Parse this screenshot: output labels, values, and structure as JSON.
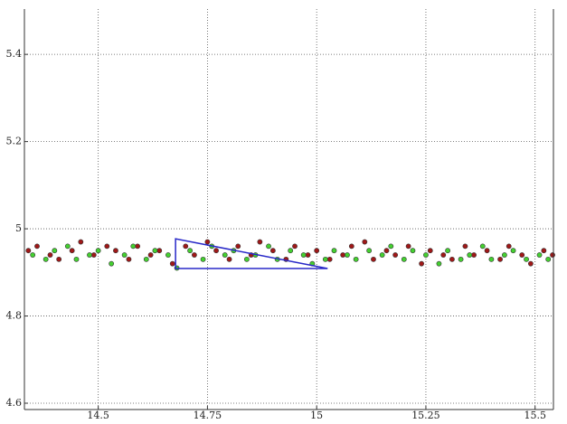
{
  "chart_data": {
    "type": "scatter",
    "xlim": [
      14.331,
      15.542
    ],
    "ylim": [
      4.5855,
      5.504
    ],
    "xticks": [
      14.5,
      14.75,
      15,
      15.25,
      15.5
    ],
    "yticks": [
      4.6,
      4.8,
      5,
      5.2,
      5.4
    ],
    "grid": true,
    "series": [
      {
        "color": "#a01818",
        "x": [
          14.34,
          14.36,
          14.39,
          14.41,
          14.44,
          14.46,
          14.49,
          14.52,
          14.54,
          14.57,
          14.59,
          14.62,
          14.64,
          14.67,
          14.7,
          14.72,
          14.75,
          14.77,
          14.8,
          14.82,
          14.85,
          14.87,
          14.9,
          14.93,
          14.95,
          14.98,
          15.0,
          15.03,
          15.06,
          15.08,
          15.11,
          15.13,
          15.16,
          15.18,
          15.21,
          15.24,
          15.26,
          15.29,
          15.31,
          15.34,
          15.36,
          15.39,
          15.42,
          15.44,
          15.47,
          15.49,
          15.52,
          15.54
        ],
        "values": [
          4.95,
          4.96,
          4.94,
          4.93,
          4.95,
          4.97,
          4.94,
          4.96,
          4.95,
          4.93,
          4.96,
          4.94,
          4.95,
          4.92,
          4.96,
          4.94,
          4.97,
          4.95,
          4.93,
          4.96,
          4.94,
          4.97,
          4.95,
          4.93,
          4.96,
          4.94,
          4.95,
          4.93,
          4.94,
          4.96,
          4.97,
          4.93,
          4.95,
          4.94,
          4.96,
          4.92,
          4.95,
          4.94,
          4.93,
          4.96,
          4.94,
          4.95,
          4.93,
          4.96,
          4.94,
          4.92,
          4.95,
          4.94
        ]
      },
      {
        "color": "#44d030",
        "x": [
          14.35,
          14.38,
          14.4,
          14.43,
          14.45,
          14.48,
          14.5,
          14.53,
          14.56,
          14.58,
          14.61,
          14.63,
          14.66,
          14.68,
          14.71,
          14.74,
          14.76,
          14.79,
          14.81,
          14.84,
          14.86,
          14.89,
          14.91,
          14.94,
          14.97,
          14.99,
          15.02,
          15.04,
          15.07,
          15.09,
          15.12,
          15.15,
          15.17,
          15.2,
          15.22,
          15.25,
          15.28,
          15.3,
          15.33,
          15.35,
          15.38,
          15.4,
          15.43,
          15.45,
          15.48,
          15.51,
          15.53
        ],
        "values": [
          4.94,
          4.93,
          4.95,
          4.96,
          4.93,
          4.94,
          4.95,
          4.92,
          4.94,
          4.96,
          4.93,
          4.95,
          4.94,
          4.91,
          4.95,
          4.93,
          4.96,
          4.94,
          4.95,
          4.93,
          4.94,
          4.96,
          4.93,
          4.95,
          4.94,
          4.92,
          4.93,
          4.95,
          4.94,
          4.93,
          4.95,
          4.94,
          4.96,
          4.93,
          4.95,
          4.94,
          4.92,
          4.95,
          4.93,
          4.94,
          4.96,
          4.93,
          4.94,
          4.95,
          4.93,
          4.94,
          4.93
        ]
      }
    ],
    "polygon": {
      "color": "#2828c8",
      "x": [
        14.677,
        14.677,
        15.025
      ],
      "y": [
        4.977,
        4.909,
        4.909
      ]
    }
  }
}
